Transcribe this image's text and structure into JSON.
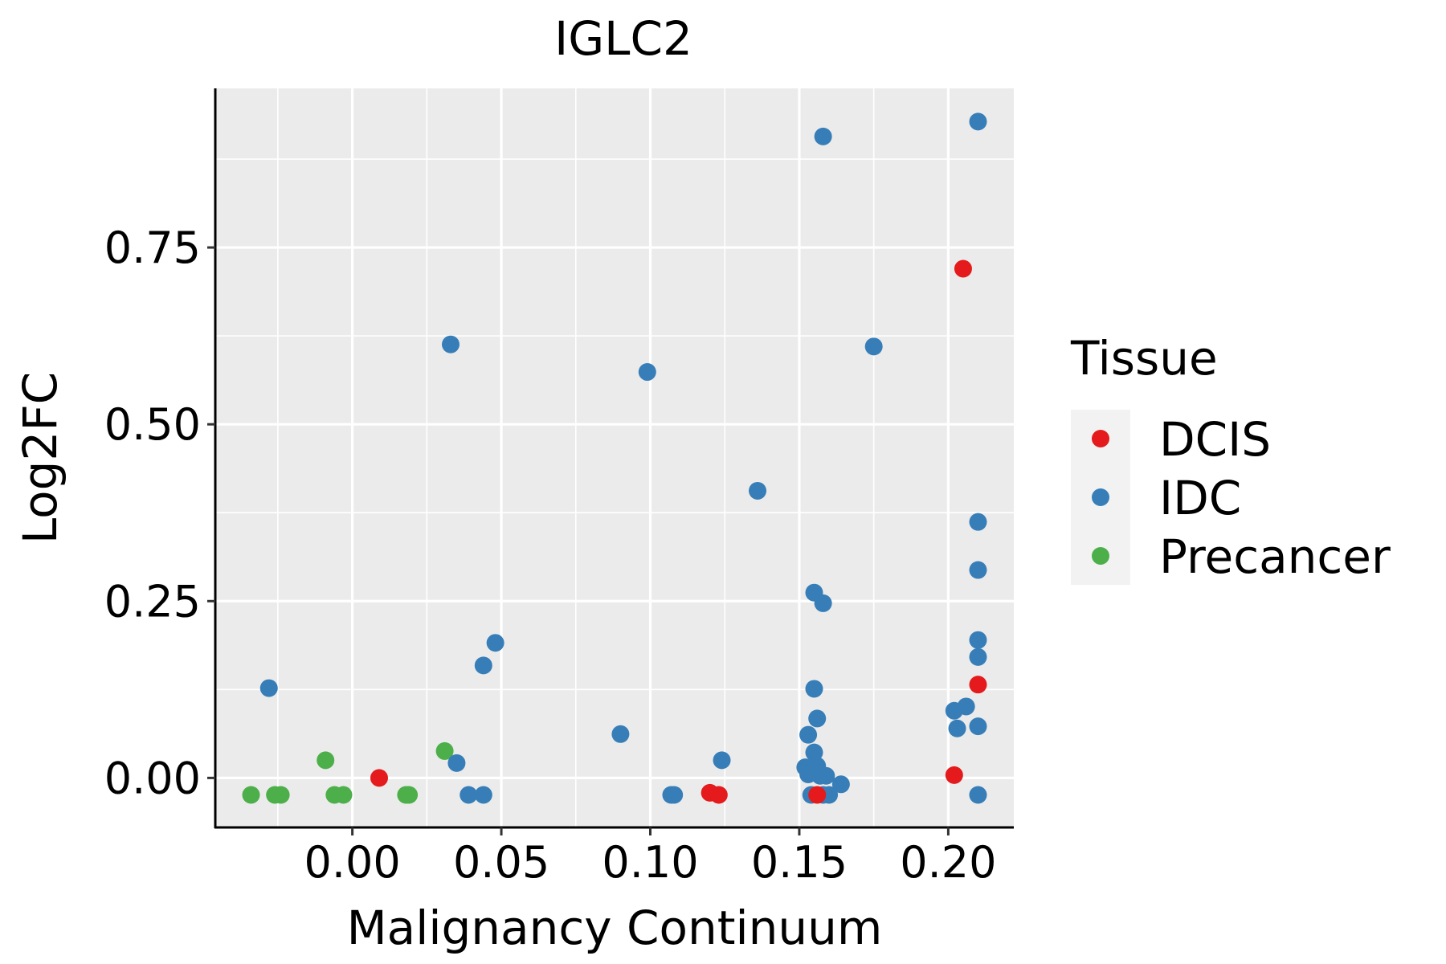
{
  "chart_data": {
    "type": "scatter",
    "title": "IGLC2",
    "xlabel": "Malignancy Continuum",
    "ylabel": "Log2FC",
    "xlim": [
      -0.046,
      0.222
    ],
    "ylim": [
      -0.07,
      0.975
    ],
    "x_ticks": [
      0.0,
      0.05,
      0.1,
      0.15,
      0.2
    ],
    "x_tick_labels": [
      "0.00",
      "0.05",
      "0.10",
      "0.15",
      "0.20"
    ],
    "y_ticks": [
      0.0,
      0.25,
      0.5,
      0.75
    ],
    "y_tick_labels": [
      "0.00",
      "0.25",
      "0.50",
      "0.75"
    ],
    "grid": true,
    "legend": {
      "title": "Tissue",
      "position": "right",
      "entries": [
        {
          "name": "DCIS",
          "color": "#e41a1c"
        },
        {
          "name": "IDC",
          "color": "#377eb8"
        },
        {
          "name": "Precancer",
          "color": "#4daf4a"
        }
      ]
    },
    "series": [
      {
        "name": "Precancer",
        "color": "#4daf4a",
        "points": [
          [
            -0.034,
            -0.024
          ],
          [
            -0.026,
            -0.024
          ],
          [
            -0.024,
            -0.024
          ],
          [
            -0.009,
            0.025
          ],
          [
            -0.006,
            -0.024
          ],
          [
            -0.003,
            -0.024
          ],
          [
            0.018,
            -0.024
          ],
          [
            0.019,
            -0.024
          ],
          [
            0.031,
            0.038
          ]
        ]
      },
      {
        "name": "IDC",
        "color": "#377eb8",
        "points": [
          [
            -0.028,
            0.127
          ],
          [
            0.033,
            0.613
          ],
          [
            0.035,
            0.021
          ],
          [
            0.039,
            -0.024
          ],
          [
            0.044,
            -0.024
          ],
          [
            0.044,
            0.159
          ],
          [
            0.048,
            0.191
          ],
          [
            0.09,
            0.062
          ],
          [
            0.099,
            0.574
          ],
          [
            0.107,
            -0.024
          ],
          [
            0.108,
            -0.024
          ],
          [
            0.124,
            0.025
          ],
          [
            0.136,
            0.406
          ],
          [
            0.152,
            0.015
          ],
          [
            0.153,
            0.061
          ],
          [
            0.153,
            0.005
          ],
          [
            0.154,
            -0.024
          ],
          [
            0.155,
            0.126
          ],
          [
            0.155,
            0.262
          ],
          [
            0.155,
            0.036
          ],
          [
            0.156,
            0.084
          ],
          [
            0.156,
            0.017
          ],
          [
            0.157,
            0.003
          ],
          [
            0.158,
            -0.024
          ],
          [
            0.158,
            0.247
          ],
          [
            0.158,
            0.907
          ],
          [
            0.159,
            0.003
          ],
          [
            0.16,
            -0.024
          ],
          [
            0.164,
            -0.009
          ],
          [
            0.175,
            0.61
          ],
          [
            0.202,
            0.095
          ],
          [
            0.203,
            0.07
          ],
          [
            0.206,
            0.101
          ],
          [
            0.21,
            0.928
          ],
          [
            0.21,
            0.362
          ],
          [
            0.21,
            0.294
          ],
          [
            0.21,
            0.195
          ],
          [
            0.21,
            0.171
          ],
          [
            0.21,
            0.073
          ],
          [
            0.21,
            -0.024
          ]
        ]
      },
      {
        "name": "DCIS",
        "color": "#e41a1c",
        "points": [
          [
            0.009,
            0.0
          ],
          [
            0.12,
            -0.021
          ],
          [
            0.123,
            -0.024
          ],
          [
            0.156,
            -0.024
          ],
          [
            0.202,
            0.004
          ],
          [
            0.205,
            0.72
          ],
          [
            0.21,
            0.132
          ]
        ]
      }
    ]
  }
}
